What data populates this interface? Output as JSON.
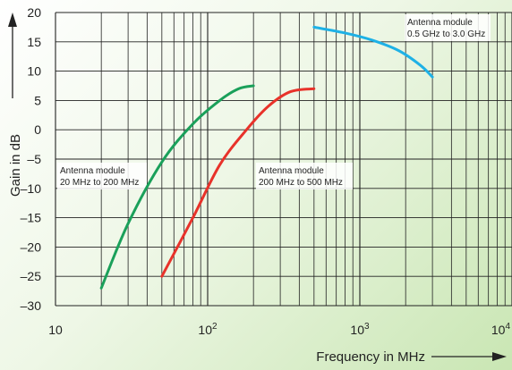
{
  "chart_data": {
    "type": "line",
    "x_scale": "log",
    "xlim": [
      10,
      10000
    ],
    "ylim": [
      -30,
      20
    ],
    "grid": true,
    "xlabel": "Frequency in MHz",
    "ylabel": "Gain in dB",
    "x_ticks": [
      {
        "base": "10",
        "exp": ""
      },
      {
        "base": "10",
        "exp": "2"
      },
      {
        "base": "10",
        "exp": "3"
      },
      {
        "base": "10",
        "exp": "4"
      }
    ],
    "y_ticks": [
      "20",
      "15",
      "10",
      "5",
      "0",
      "–5",
      "–10",
      "–15",
      "–20",
      "–25",
      "–30"
    ],
    "series": [
      {
        "color": "#1aa05a",
        "x": [
          20,
          30,
          50,
          80,
          120,
          160,
          200
        ],
        "y": [
          -27,
          -16,
          -5.5,
          1,
          5,
          7,
          7.5
        ]
      },
      {
        "color": "#e8322a",
        "x": [
          50,
          80,
          120,
          180,
          250,
          350,
          500
        ],
        "y": [
          -25,
          -15,
          -6,
          0,
          4,
          6.5,
          7
        ]
      },
      {
        "color": "#1eb1e6",
        "x": [
          500,
          800,
          1200,
          1800,
          2500,
          3000
        ],
        "y": [
          17.5,
          16.5,
          15.3,
          13.5,
          11,
          9
        ]
      }
    ],
    "annotations": [
      {
        "lines": [
          "Antenna module",
          "20 MHz to 200 MHz"
        ]
      },
      {
        "lines": [
          "Antenna module",
          "200 MHz to 500 MHz"
        ]
      },
      {
        "lines": [
          "Antenna module",
          "0.5 GHz to 3.0 GHz"
        ]
      }
    ]
  }
}
